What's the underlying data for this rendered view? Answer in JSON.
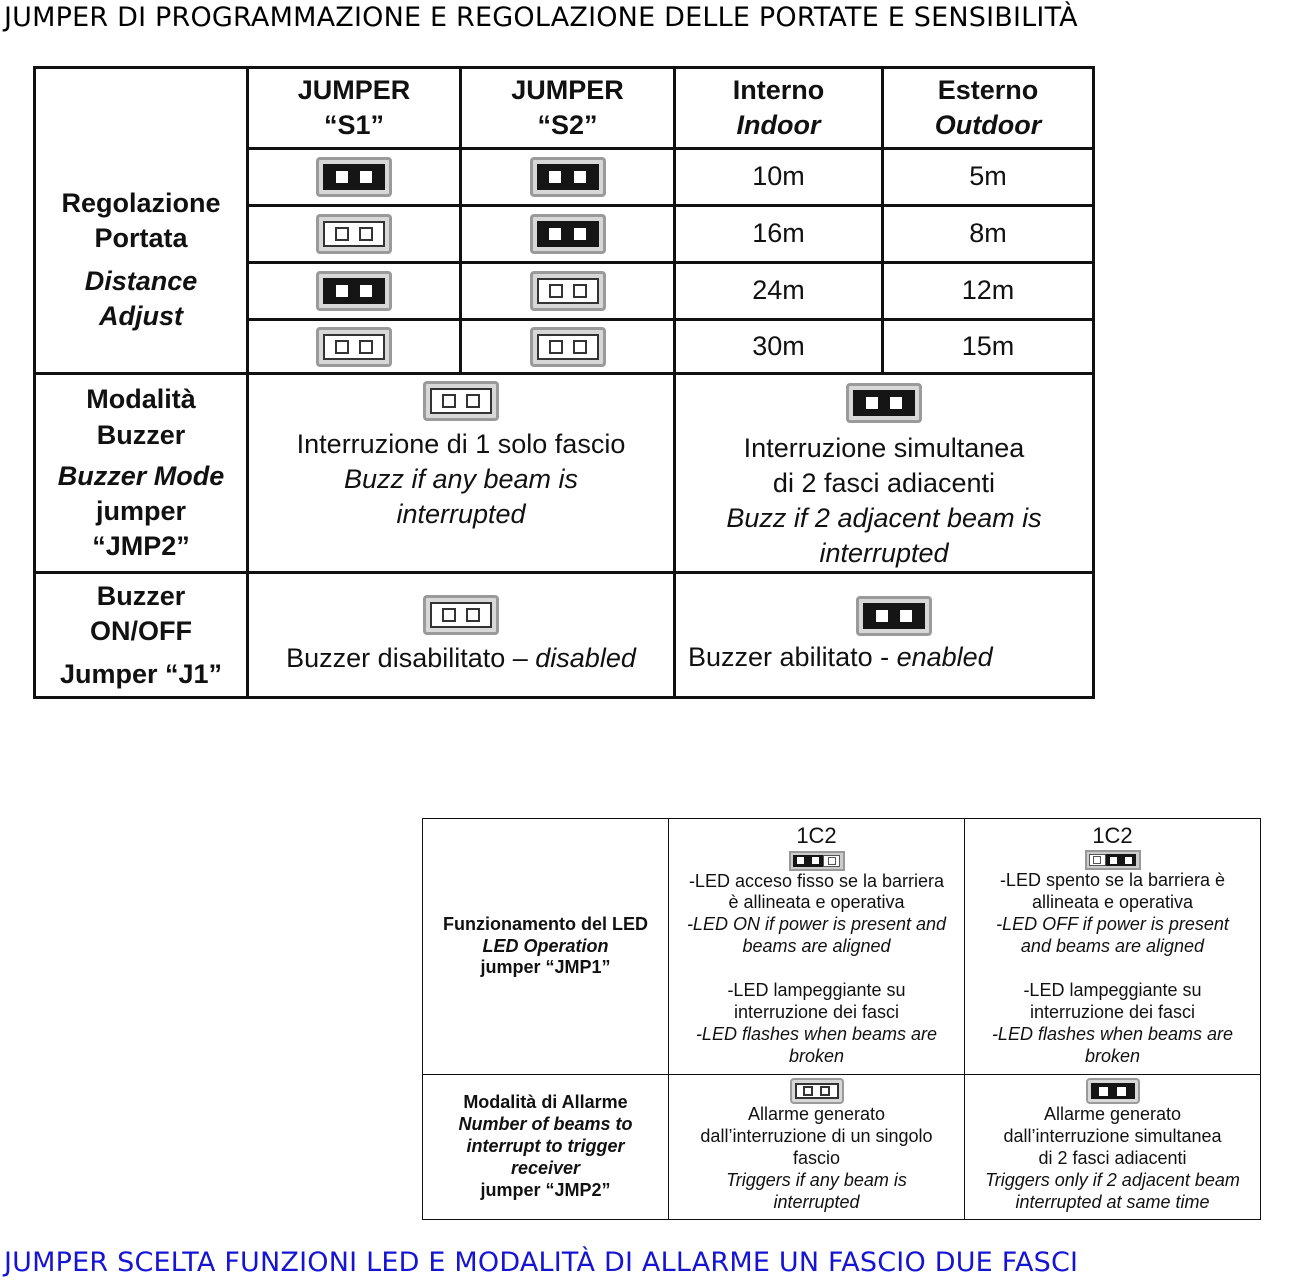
{
  "titles": {
    "top": "JUMPER DI PROGRAMMAZIONE E REGOLAZIONE DELLE PORTATE E SENSIBILITÀ",
    "bottom": "JUMPER SCELTA FUNZIONI LED E MODALITÀ DI ALLARME UN FASCIO DUE FASCI",
    "bottom_color": "#1414d2"
  },
  "table1": {
    "headers": {
      "s1": [
        "JUMPER",
        "“S1”"
      ],
      "s2": [
        "JUMPER",
        "“S2”"
      ],
      "indoor": [
        "Interno",
        "Indoor"
      ],
      "outdoor": [
        "Esterno",
        "Outdoor"
      ]
    },
    "distance": {
      "label": [
        "Regolazione",
        "Portata"
      ],
      "label_en": [
        "Distance",
        "Adjust"
      ],
      "rows": [
        {
          "s1": "closed",
          "s2": "closed",
          "indoor": "10m",
          "outdoor": "5m"
        },
        {
          "s1": "open",
          "s2": "closed",
          "indoor": "16m",
          "outdoor": "8m"
        },
        {
          "s1": "closed",
          "s2": "open",
          "indoor": "24m",
          "outdoor": "12m"
        },
        {
          "s1": "open",
          "s2": "open",
          "indoor": "30m",
          "outdoor": "15m"
        }
      ]
    },
    "buzzer_mode": {
      "label": [
        "Modalità",
        "Buzzer"
      ],
      "label_en": "Buzzer Mode",
      "label_j": [
        "jumper",
        "“JMP2”"
      ],
      "left": {
        "state": "open",
        "it": "Interruzione di 1 solo fascio",
        "en": [
          "Buzz if any beam is",
          "interrupted"
        ]
      },
      "right": {
        "state": "closed",
        "it": [
          "Interruzione simultanea",
          "di 2 fasci adiacenti"
        ],
        "en": [
          "Buzz if 2 adjacent beam is",
          "interrupted"
        ]
      }
    },
    "buzzer_onoff": {
      "label": [
        "Buzzer",
        "ON/OFF"
      ],
      "label_j": "Jumper “J1”",
      "left": {
        "state": "open",
        "it": "Buzzer disabilitato – ",
        "en": "disabled"
      },
      "right": {
        "state": "closed",
        "it": "Buzzer abilitato - ",
        "en": "enabled"
      }
    }
  },
  "table2": {
    "led": {
      "label": "Funzionamento del LED",
      "label_en": "LED Operation",
      "label_j": "jumper “JMP1”",
      "left": {
        "jumper_label": "1C2",
        "pins": [
          "closed",
          "closed",
          "open"
        ],
        "lines": [
          "-LED acceso fisso se la barriera",
          "è allineata e operativa"
        ],
        "lines_en": [
          "-LED ON if power is present and",
          "beams are aligned"
        ],
        "lines2": [
          "-LED lampeggiante su",
          "interruzione dei fasci"
        ],
        "lines2_en": [
          "-LED flashes when beams are",
          "broken"
        ]
      },
      "right": {
        "jumper_label": "1C2",
        "pins": [
          "open",
          "closed",
          "closed"
        ],
        "lines": [
          "-LED spento se la barriera è",
          "allineata e operativa"
        ],
        "lines_en": [
          "-LED OFF if power is present",
          "and beams are aligned"
        ],
        "lines2": [
          "-LED lampeggiante su",
          "interruzione dei fasci"
        ],
        "lines2_en": [
          "-LED flashes when beams are",
          "broken"
        ]
      }
    },
    "alarm": {
      "label": "Modalità di Allarme",
      "label_en": [
        "Number of beams to",
        "interrupt to trigger",
        "receiver"
      ],
      "label_j": "jumper “JMP2”",
      "left": {
        "state": "open",
        "lines": [
          "Allarme generato",
          "dall’interruzione di un singolo",
          "fascio"
        ],
        "lines_en": [
          "Triggers if any beam is",
          "interrupted"
        ]
      },
      "right": {
        "state": "closed",
        "lines": [
          "Allarme generato",
          "dall’interruzione simultanea",
          "di 2 fasci adiacenti"
        ],
        "lines_en": [
          "Triggers only if 2 adjacent beam",
          "interrupted at same time"
        ]
      }
    }
  }
}
